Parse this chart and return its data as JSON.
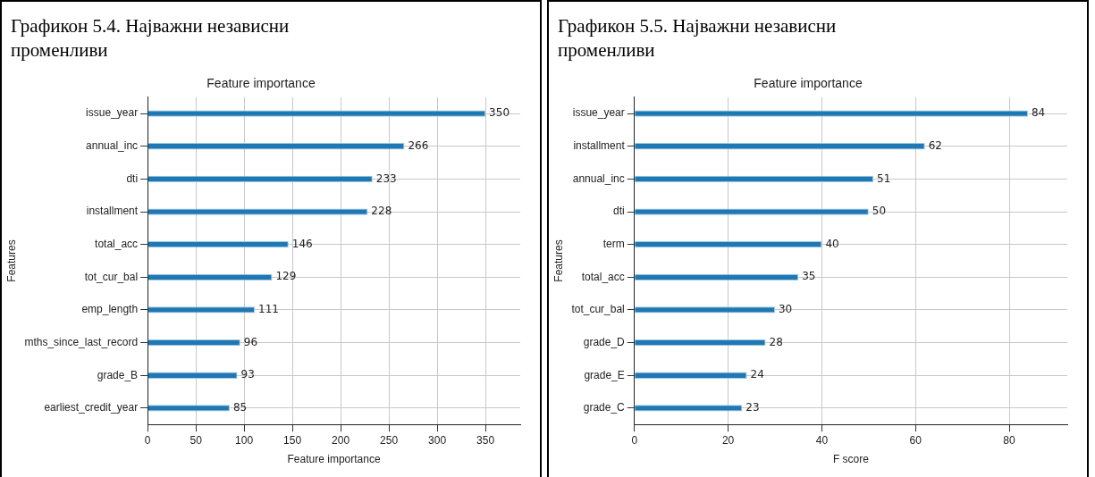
{
  "chart_data": [
    {
      "type": "bar",
      "orientation": "horizontal",
      "title": "Графикон 5.4. Најважни независни променливи",
      "subtitle": "Feature importance",
      "xlabel": "Feature importance",
      "ylabel": "Features",
      "categories": [
        "issue_year",
        "annual_inc",
        "dti",
        "installment",
        "total_acc",
        "tot_cur_bal",
        "emp_length",
        "mths_since_last_record",
        "grade_B",
        "earliest_credit_year"
      ],
      "values": [
        350,
        266,
        233,
        228,
        146,
        129,
        111,
        96,
        93,
        85
      ],
      "color": "#1f77b4",
      "xlim": [
        0,
        386
      ],
      "xticks": [
        0,
        50,
        100,
        150,
        200,
        250,
        300,
        350
      ],
      "grid": true,
      "data_labels": true
    },
    {
      "type": "bar",
      "orientation": "horizontal",
      "title": "Графикон 5.5. Најважни независни променливи",
      "subtitle": "Feature importance",
      "xlabel": "F score",
      "ylabel": "Features",
      "categories": [
        "issue_year",
        "installment",
        "annual_inc",
        "dti",
        "term",
        "total_acc",
        "tot_cur_bal",
        "grade_D",
        "grade_E",
        "grade_C"
      ],
      "values": [
        84,
        62,
        51,
        50,
        40,
        35,
        30,
        28,
        24,
        23
      ],
      "color": "#1f77b4",
      "xlim": [
        0,
        92.4
      ],
      "xticks": [
        0,
        20,
        40,
        60,
        80
      ],
      "grid": true,
      "data_labels": true
    }
  ]
}
